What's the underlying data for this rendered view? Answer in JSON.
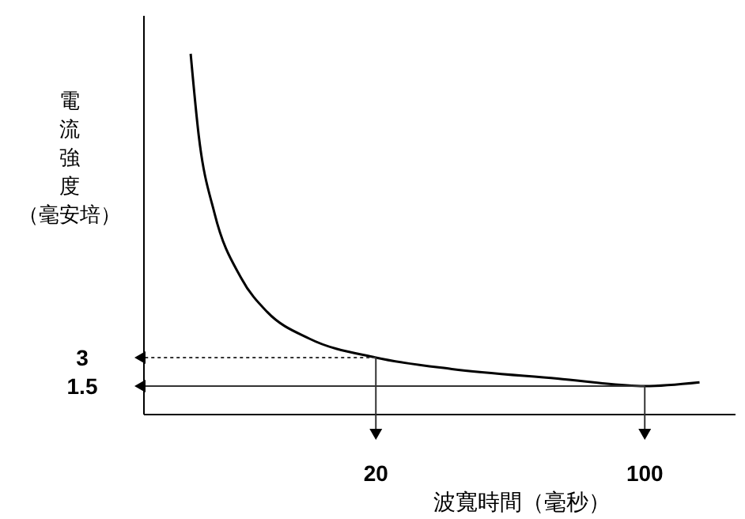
{
  "chart_data": {
    "type": "line",
    "xlabel": "波寬時間（毫秒）",
    "ylabel": "電流強度（毫安培）",
    "x": [
      -35.1,
      -32.7,
      -28.0,
      -20.1,
      -12.3,
      0.2,
      20,
      42.6,
      74,
      100,
      116.3
    ],
    "series": [
      {
        "color": "#000000",
        "values": [
          19.0,
          14.7,
          10.6,
          7.2,
          5.4,
          4.0,
          3,
          2.4,
          1.9,
          1.5,
          1.7
        ]
      }
    ],
    "xlim": [
      -49,
      127
    ],
    "ylim": [
      0,
      21
    ],
    "xticks": [
      20,
      100
    ],
    "yticks": [
      1.5,
      3
    ],
    "marker": "none",
    "line_style": "solid"
  }
}
